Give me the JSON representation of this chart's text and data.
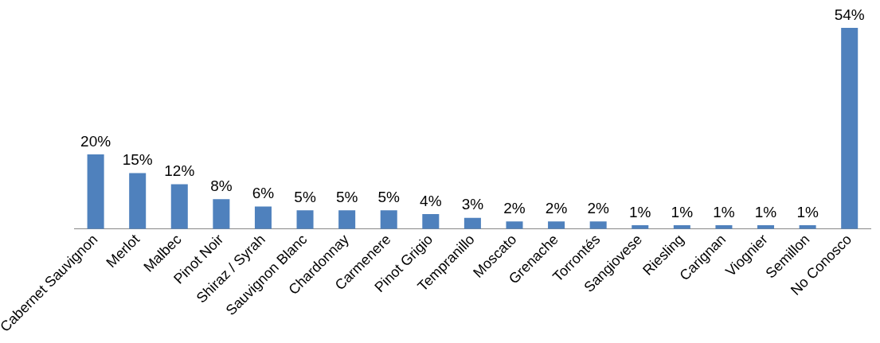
{
  "chart_data": {
    "type": "bar",
    "categories": [
      "Cabernet Sauvignon",
      "Merlot",
      "Malbec",
      "Pinot Noir",
      "Shiraz / Syrah",
      "Sauvignon Blanc",
      "Chardonnay",
      "Carmenere",
      "Pinot Grigio",
      "Tempranillo",
      "Moscato",
      "Grenache",
      "Torrontés",
      "Sangiovese",
      "Riesling",
      "Carignan",
      "Viognier",
      "Semillon",
      "No Conosco"
    ],
    "values": [
      20,
      15,
      12,
      8,
      6,
      5,
      5,
      5,
      4,
      3,
      2,
      2,
      2,
      1,
      1,
      1,
      1,
      1,
      54
    ],
    "value_labels": [
      "20%",
      "15%",
      "12%",
      "8%",
      "6%",
      "5%",
      "5%",
      "5%",
      "4%",
      "3%",
      "2%",
      "2%",
      "2%",
      "1%",
      "1%",
      "1%",
      "1%",
      "1%",
      "54%"
    ],
    "color": "#4f81bd",
    "grid": false,
    "legend": false
  }
}
